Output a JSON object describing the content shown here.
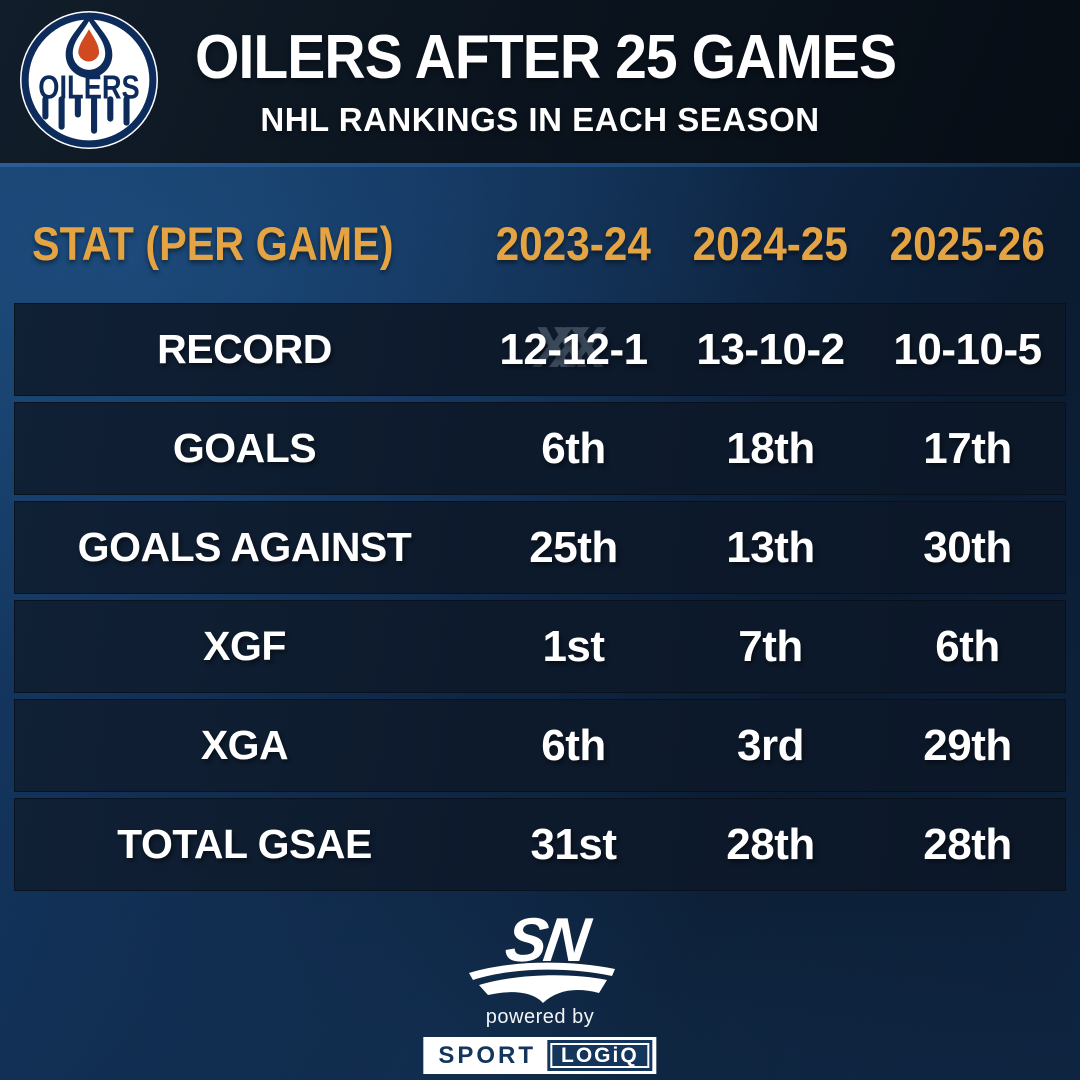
{
  "header": {
    "title": "OILERS AFTER 25 GAMES",
    "subtitle": "NHL RANKINGS IN EACH SEASON",
    "logo_text": "OILERS"
  },
  "table": {
    "header": {
      "stat_label": "STAT (PER GAME)",
      "seasons": [
        "2023-24",
        "2024-25",
        "2025-26"
      ]
    },
    "rows": [
      {
        "stat": "RECORD",
        "values": [
          "12-12-1",
          "13-10-2",
          "10-10-5"
        ]
      },
      {
        "stat": "GOALS",
        "values": [
          "6th",
          "18th",
          "17th"
        ]
      },
      {
        "stat": "GOALS AGAINST",
        "values": [
          "25th",
          "13th",
          "30th"
        ]
      },
      {
        "stat": "XGF",
        "values": [
          "1st",
          "7th",
          "6th"
        ]
      },
      {
        "stat": "XGA",
        "values": [
          "6th",
          "3rd",
          "29th"
        ]
      },
      {
        "stat": "TOTAL GSAE",
        "values": [
          "31st",
          "28th",
          "28th"
        ]
      }
    ],
    "watermark": "XXX"
  },
  "footer": {
    "sn_logo_text": "SN",
    "powered_by": "powered by",
    "sport": "SPORT",
    "logiq": "LOGiQ"
  },
  "colors": {
    "gold": "#e4a443",
    "row_background": "#0d1a2c",
    "oilers_navy": "#0d2b5b",
    "oilers_orange": "#d1491f",
    "sportlogiq_navy": "#14355c"
  },
  "chart_data": {
    "type": "table",
    "title": "OILERS AFTER 25 GAMES",
    "subtitle": "NHL RANKINGS IN EACH SEASON",
    "columns": [
      "STAT (PER GAME)",
      "2023-24",
      "2024-25",
      "2025-26"
    ],
    "rows": [
      [
        "RECORD",
        "12-12-1",
        "13-10-2",
        "10-10-5"
      ],
      [
        "GOALS",
        "6th",
        "18th",
        "17th"
      ],
      [
        "GOALS AGAINST",
        "25th",
        "13th",
        "30th"
      ],
      [
        "XGF",
        "1st",
        "7th",
        "6th"
      ],
      [
        "XGA",
        "6th",
        "3rd",
        "29th"
      ],
      [
        "TOTAL GSAE",
        "31st",
        "28th",
        "28th"
      ]
    ]
  }
}
